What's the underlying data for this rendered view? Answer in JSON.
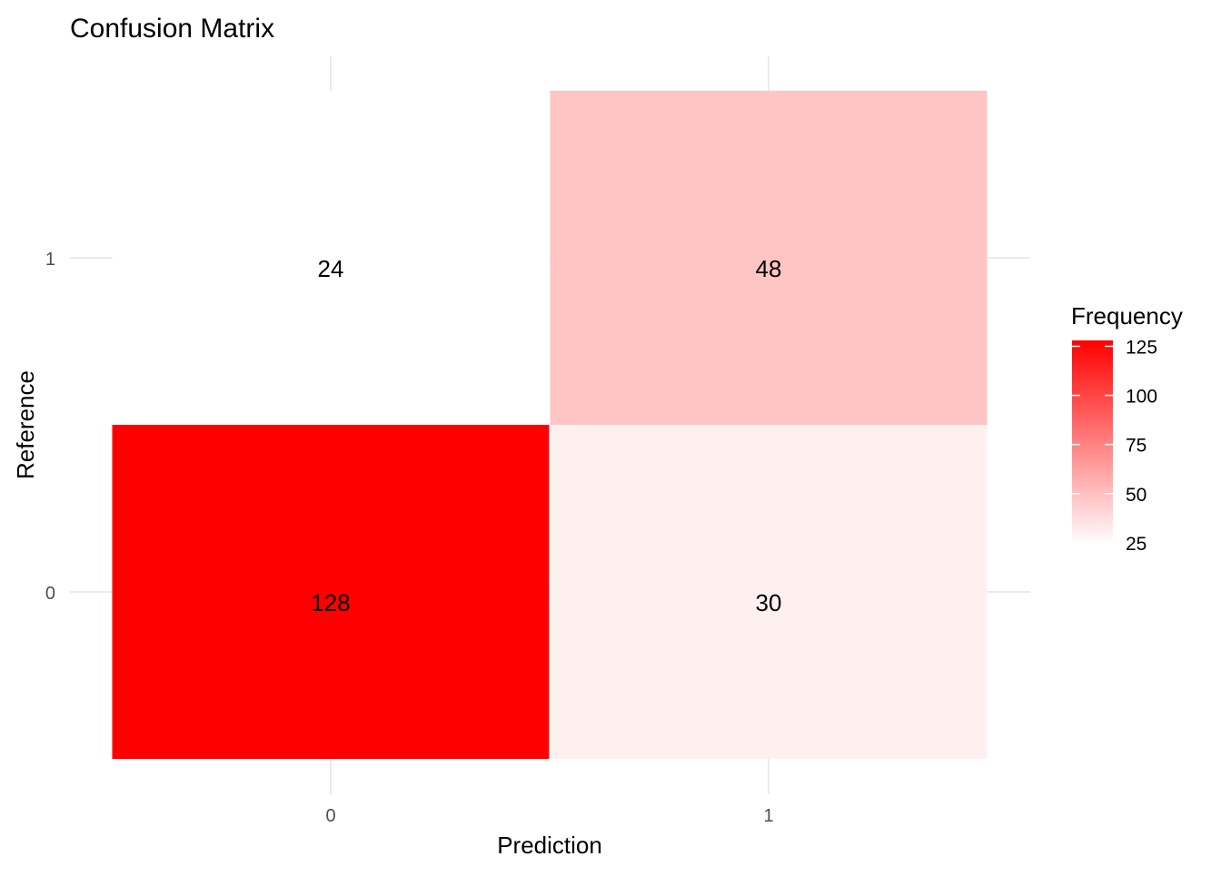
{
  "chart_data": {
    "type": "heatmap",
    "title": "Confusion Matrix",
    "xlabel": "Prediction",
    "ylabel": "Reference",
    "x_categories": [
      "0",
      "1"
    ],
    "y_categories": [
      "0",
      "1"
    ],
    "cells": [
      {
        "x": "0",
        "y": "0",
        "value": 128
      },
      {
        "x": "1",
        "y": "0",
        "value": 30
      },
      {
        "x": "0",
        "y": "1",
        "value": 24
      },
      {
        "x": "1",
        "y": "1",
        "value": 48
      }
    ],
    "color_scale": {
      "low": "#ffffff",
      "high": "#ff0000",
      "min": 24,
      "max": 128
    },
    "legend": {
      "title": "Frequency",
      "ticks": [
        25,
        50,
        75,
        100,
        125
      ],
      "placement": "right"
    },
    "grid": true
  }
}
